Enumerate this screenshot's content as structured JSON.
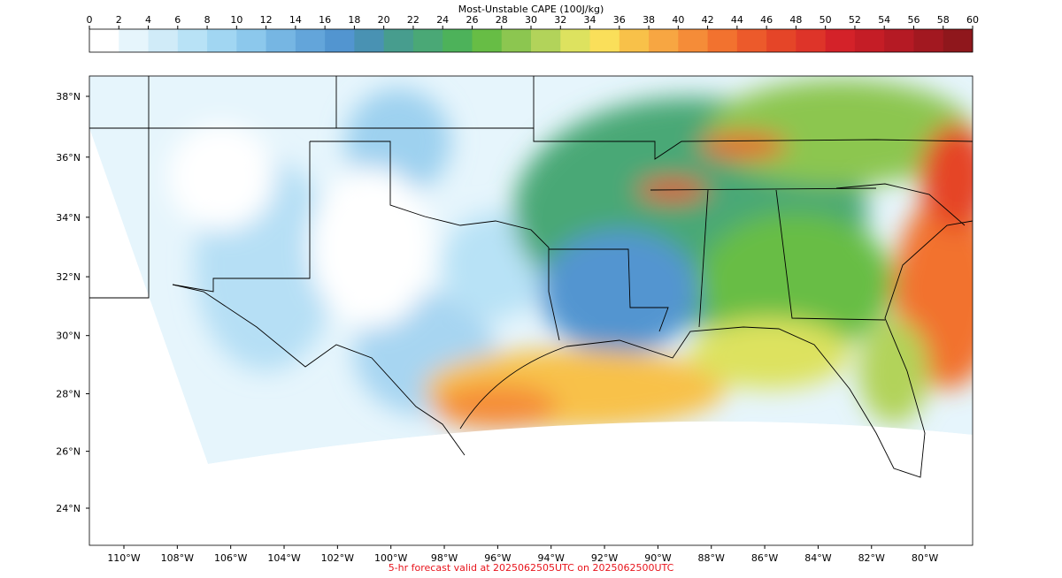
{
  "colorbar": {
    "title": "Most-Unstable CAPE (100J/kg)",
    "ticks": [
      0,
      2,
      4,
      6,
      8,
      10,
      12,
      14,
      16,
      18,
      20,
      22,
      24,
      26,
      28,
      30,
      32,
      34,
      36,
      38,
      40,
      42,
      44,
      46,
      48,
      50,
      52,
      54,
      56,
      58,
      60
    ],
    "colors": [
      "#ffffff",
      "#e6f5fc",
      "#d0ebf8",
      "#b8e2f6",
      "#a1d6f2",
      "#8cc8ec",
      "#76b6e3",
      "#63a5da",
      "#5295d0",
      "#4992b3",
      "#479d8e",
      "#4aa876",
      "#4db25a",
      "#67bd45",
      "#8cc650",
      "#b2d35a",
      "#dde25f",
      "#fadf5a",
      "#f8c149",
      "#f7a642",
      "#f58c38",
      "#f2722f",
      "#ec5a2b",
      "#e54528",
      "#de3429",
      "#d42229",
      "#c51d26",
      "#b51a24",
      "#a21820",
      "#8f171c"
    ]
  },
  "map": {
    "lat_ticks": [
      {
        "value": 24,
        "label": "24°N"
      },
      {
        "value": 26,
        "label": "26°N"
      },
      {
        "value": 28,
        "label": "28°N"
      },
      {
        "value": 30,
        "label": "30°N"
      },
      {
        "value": 32,
        "label": "32°N"
      },
      {
        "value": 34,
        "label": "34°N"
      },
      {
        "value": 36,
        "label": "36°N"
      },
      {
        "value": 38,
        "label": "38°N"
      }
    ],
    "lon_ticks": [
      {
        "value": -110,
        "label": "110°W"
      },
      {
        "value": -108,
        "label": "108°W"
      },
      {
        "value": -106,
        "label": "106°W"
      },
      {
        "value": -104,
        "label": "104°W"
      },
      {
        "value": -102,
        "label": "102°W"
      },
      {
        "value": -100,
        "label": "100°W"
      },
      {
        "value": -98,
        "label": "98°W"
      },
      {
        "value": -96,
        "label": "96°W"
      },
      {
        "value": -94,
        "label": "94°W"
      },
      {
        "value": -92,
        "label": "92°W"
      },
      {
        "value": -90,
        "label": "90°W"
      },
      {
        "value": -88,
        "label": "88°W"
      },
      {
        "value": -86,
        "label": "86°W"
      },
      {
        "value": -84,
        "label": "84°W"
      },
      {
        "value": -82,
        "label": "82°W"
      },
      {
        "value": -80,
        "label": "80°W"
      }
    ],
    "footer": "5-hr forecast valid at 2025062505UTC on 2025062500UTC"
  }
}
